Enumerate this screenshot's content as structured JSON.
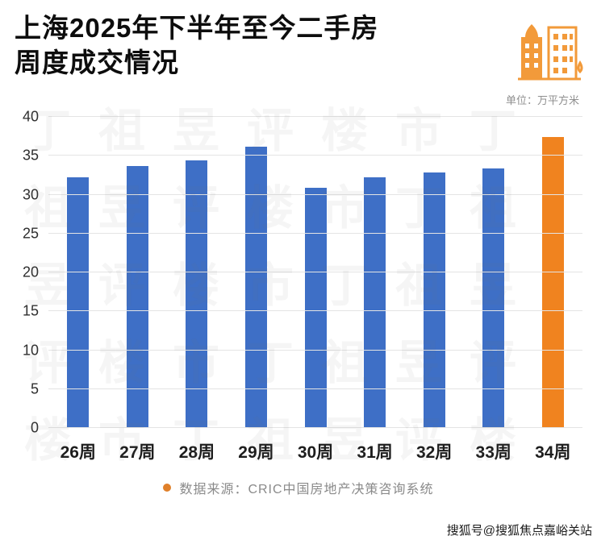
{
  "header": {
    "title_line1": "上海2025年下半年至今二手房",
    "title_line2": "周度成交情况",
    "icon": "buildings-icon",
    "icon_color": "#f29a3a"
  },
  "chart_data": {
    "type": "bar",
    "title": "上海2025年下半年至今二手房周度成交情况",
    "unit_label": "单位：万平方米",
    "categories": [
      "26周",
      "27周",
      "28周",
      "29周",
      "30周",
      "31周",
      "32周",
      "33周",
      "34周"
    ],
    "values": [
      32.2,
      33.7,
      34.4,
      36.2,
      30.9,
      32.2,
      32.8,
      33.4,
      37.4
    ],
    "ylim": [
      0,
      40
    ],
    "ytick_step": 5,
    "grid": true,
    "legend_position": "none",
    "bar_color": "#3e6fc6",
    "highlight_index": 8,
    "highlight_color": "#f0831f"
  },
  "footer": {
    "bullet_color": "#e0802a",
    "source": "数据来源：CRIC中国房地产决策咨询系统"
  },
  "credit": {
    "text": "搜狐号@搜狐焦点嘉峪关站"
  },
  "watermark": {
    "text": "丁祖昱评楼市"
  }
}
